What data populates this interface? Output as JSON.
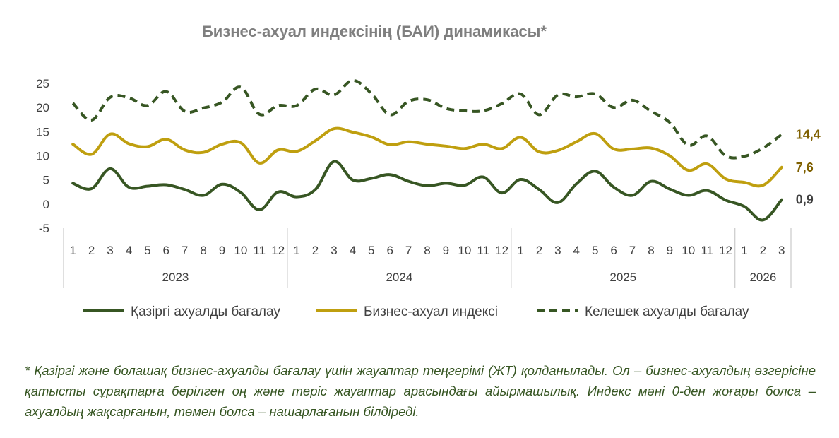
{
  "chart_data": {
    "type": "line",
    "title": "Бизнес-ахуал индексінің (БАИ) динамикасы*",
    "ylim": [
      -5,
      25
    ],
    "yticks": [
      "-5",
      "0",
      "5",
      "10",
      "15",
      "20",
      "25"
    ],
    "categories": [
      "1",
      "2",
      "3",
      "4",
      "5",
      "6",
      "7",
      "8",
      "9",
      "10",
      "11",
      "12",
      "1",
      "2",
      "3",
      "4",
      "5",
      "6",
      "7",
      "8",
      "9",
      "10",
      "11",
      "12",
      "1",
      "2",
      "3",
      "4",
      "5",
      "6",
      "7",
      "8",
      "9",
      "10",
      "11",
      "12",
      "1",
      "2",
      "3"
    ],
    "years": [
      {
        "label": "2023",
        "count": 12
      },
      {
        "label": "2024",
        "count": 12
      },
      {
        "label": "2025",
        "count": 12
      },
      {
        "label": "2026",
        "count": 3
      }
    ],
    "series": [
      {
        "name": "Қазіргі ахуалды бағалау",
        "color": "#375623",
        "dash": false,
        "values": [
          4.3,
          3.2,
          7.3,
          3.5,
          3.7,
          4.0,
          3.0,
          1.8,
          4.1,
          2.4,
          -1.2,
          2.5,
          1.5,
          3.0,
          8.8,
          5.0,
          5.3,
          6.1,
          4.7,
          3.8,
          4.3,
          3.9,
          5.6,
          2.3,
          5.1,
          3.0,
          0.3,
          4.2,
          6.8,
          3.5,
          1.8,
          4.7,
          3.1,
          1.8,
          2.8,
          0.8,
          -0.5,
          -3.3,
          0.9
        ],
        "end_label": "0,9",
        "end_label_color": "#404040"
      },
      {
        "name": "Бизнес-ахуал индексі",
        "color": "#bf9f0f",
        "dash": false,
        "values": [
          12.4,
          10.3,
          14.5,
          12.5,
          11.9,
          13.4,
          11.2,
          10.7,
          12.4,
          12.7,
          8.5,
          11.2,
          10.9,
          13.1,
          15.6,
          14.9,
          13.9,
          12.3,
          12.9,
          12.4,
          12.0,
          11.5,
          12.4,
          11.5,
          13.8,
          10.8,
          11.1,
          12.9,
          14.6,
          11.4,
          11.4,
          11.6,
          10.0,
          7.0,
          8.3,
          5.2,
          4.5,
          3.9,
          7.6
        ],
        "end_label": "7,6",
        "end_label_color": "#7f6000"
      },
      {
        "name": "Келешек ахуалды бағалау",
        "color": "#375623",
        "dash": true,
        "values": [
          20.9,
          17.4,
          22.1,
          22.0,
          20.4,
          23.3,
          19.2,
          19.9,
          21.1,
          24.2,
          18.6,
          20.4,
          20.4,
          23.8,
          22.6,
          25.6,
          22.9,
          18.5,
          21.3,
          21.6,
          19.8,
          19.3,
          19.3,
          20.8,
          22.8,
          18.5,
          22.6,
          22.2,
          22.8,
          20.0,
          21.5,
          19.2,
          16.9,
          12.2,
          14.1,
          10.0,
          9.9,
          11.6,
          14.4
        ],
        "end_label": "14,4",
        "end_label_color": "#7f6000"
      }
    ]
  },
  "footnote": "* Қазіргі және болашақ бизнес-ахуалды бағалау үшін жауаптар теңгерімі (ЖТ) қолданылады. Ол – бизнес-ахуалдың өзгерісіне қатысты сұрақтарға берілген оң және теріс жауаптар арасындағы айырмашылық. Индекс мәні 0-ден жоғары болса – ахуалдың жақсарғанын, төмен болса – нашарлағанын білдіреді."
}
